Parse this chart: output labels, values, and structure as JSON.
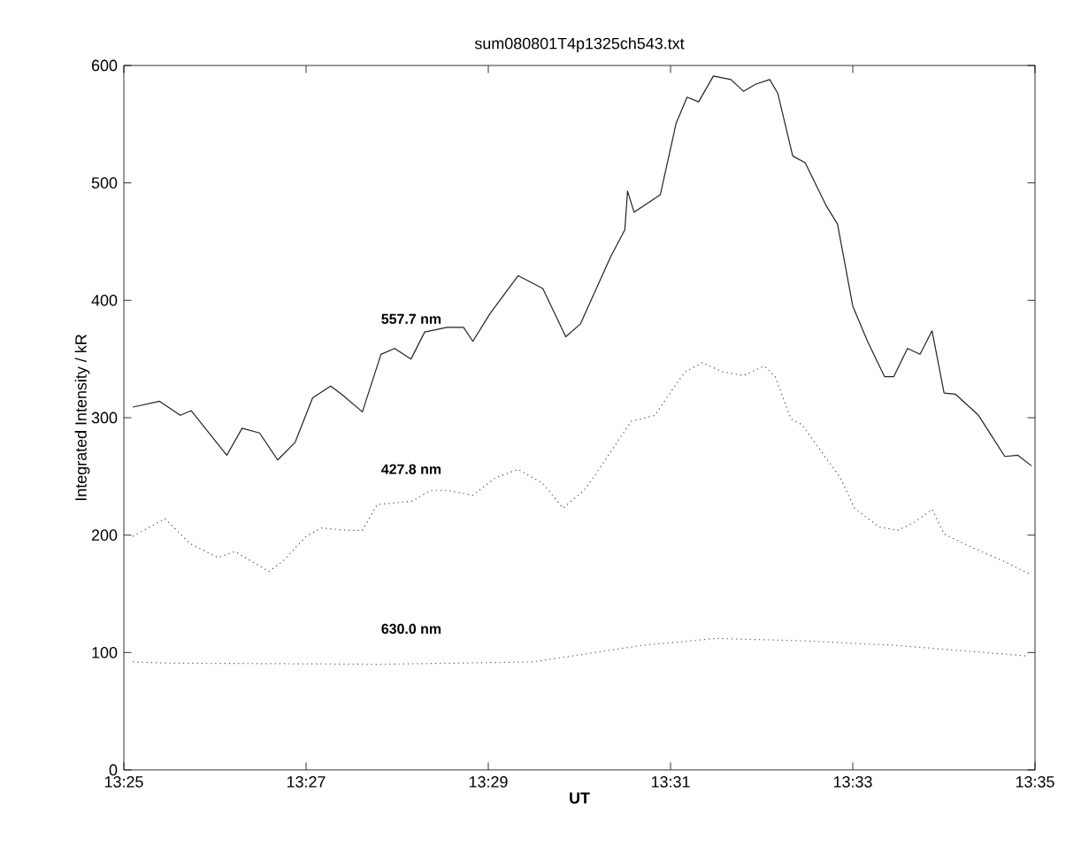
{
  "chart_data": {
    "type": "line",
    "title": "sum080801T4p1325ch543.txt",
    "xlabel": "UT",
    "ylabel": "Integrated Intensity / kR",
    "xlim": [
      13.41667,
      13.58333
    ],
    "ylim": [
      0,
      600
    ],
    "xticks": [
      {
        "value": 13.41667,
        "label": "13:25"
      },
      {
        "value": 13.45,
        "label": "13:27"
      },
      {
        "value": 13.48333,
        "label": "13:29"
      },
      {
        "value": 13.51667,
        "label": "13:31"
      },
      {
        "value": 13.55,
        "label": "13:33"
      },
      {
        "value": 13.58333,
        "label": "13:35"
      }
    ],
    "yticks": [
      0,
      100,
      200,
      300,
      400,
      500,
      600
    ],
    "series": [
      {
        "name": "557.7 nm",
        "color": "#222222",
        "line_style": "solid",
        "x": [
          13.4183,
          13.4232,
          13.427,
          13.429,
          13.4355,
          13.4383,
          13.4415,
          13.4448,
          13.448,
          13.4512,
          13.4545,
          13.4565,
          13.4603,
          13.4637,
          13.4662,
          13.4692,
          13.4717,
          13.4758,
          13.4788,
          13.4805,
          13.4837,
          13.4888,
          13.4933,
          13.4975,
          13.5002,
          13.5057,
          13.5083,
          13.5088,
          13.51,
          13.5148,
          13.5177,
          13.5197,
          13.5218,
          13.5245,
          13.5277,
          13.53,
          13.5322,
          13.5348,
          13.5363,
          13.539,
          13.5413,
          13.5452,
          13.5472,
          13.55,
          13.5527,
          13.5558,
          13.5575,
          13.56,
          13.5623,
          13.5645,
          13.5667,
          13.5688,
          13.573,
          13.5778,
          13.5802,
          13.5827
        ],
        "values": [
          309,
          314,
          302,
          306,
          268,
          291,
          287,
          264,
          279,
          317,
          327,
          320,
          305,
          354,
          359,
          350,
          373,
          377,
          377,
          365,
          389,
          421,
          410,
          369,
          380,
          437,
          460,
          493,
          475,
          490,
          551,
          573,
          569,
          591,
          588,
          578,
          584,
          588,
          576,
          523,
          517,
          480,
          465,
          395,
          365,
          335,
          335,
          359,
          354,
          374,
          321,
          320,
          302,
          267,
          268,
          259
        ]
      },
      {
        "name": "427.8 nm",
        "color": "#444444",
        "line_style": "dotted",
        "x": [
          13.4183,
          13.4242,
          13.4287,
          13.4338,
          13.437,
          13.4432,
          13.4458,
          13.45,
          13.4528,
          13.4578,
          13.4603,
          13.463,
          13.4695,
          13.4727,
          13.4758,
          13.4805,
          13.4847,
          13.4888,
          13.4933,
          13.497,
          13.5008,
          13.503,
          13.5073,
          13.5095,
          13.5138,
          13.517,
          13.5193,
          13.5225,
          13.5262,
          13.53,
          13.5338,
          13.5358,
          13.5387,
          13.5407,
          13.5477,
          13.5503,
          13.5548,
          13.5582,
          13.5613,
          13.5645,
          13.5667,
          13.572,
          13.5775,
          13.5827
        ],
        "values": [
          199,
          214,
          193,
          181,
          186,
          169,
          178,
          199,
          206,
          204,
          204,
          226,
          229,
          238,
          238,
          234,
          249,
          256,
          244,
          223,
          238,
          252,
          282,
          297,
          302,
          324,
          339,
          347,
          339,
          336,
          344,
          335,
          299,
          294,
          249,
          223,
          207,
          204,
          211,
          222,
          201,
          189,
          178,
          166
        ]
      },
      {
        "name": "630.0 nm",
        "color": "#555555",
        "line_style": "dotted",
        "x": [
          13.4183,
          13.4247,
          13.4637,
          13.4915,
          13.5113,
          13.525,
          13.5407,
          13.5583,
          13.582
        ],
        "values": [
          92,
          91,
          90,
          92,
          106,
          112,
          110,
          106,
          97
        ]
      }
    ]
  }
}
